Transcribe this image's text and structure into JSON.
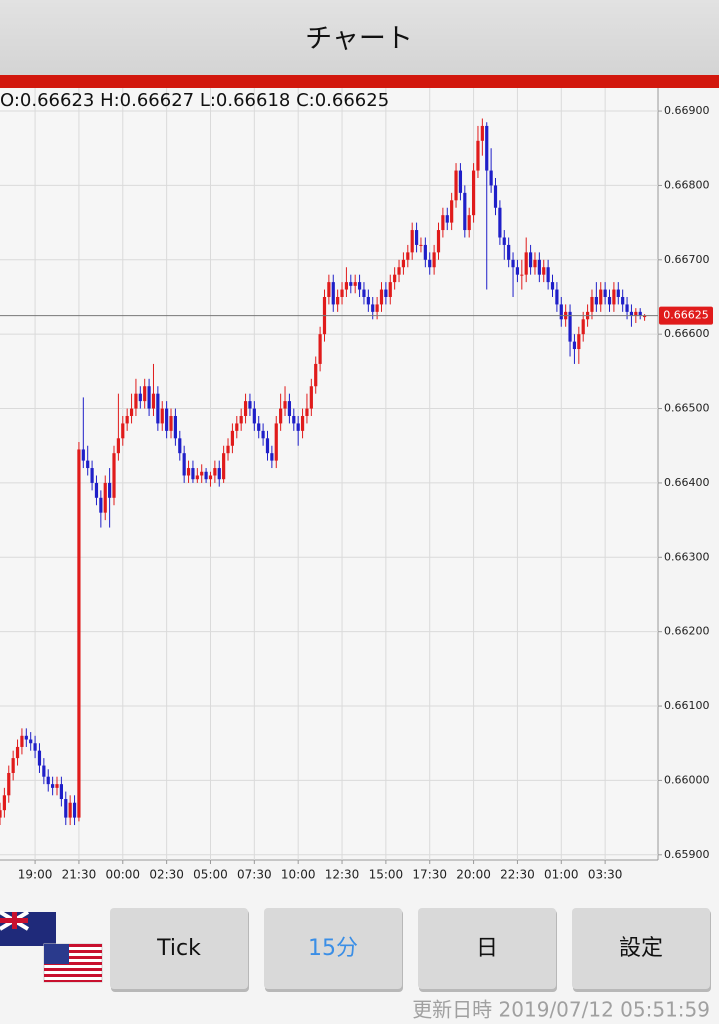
{
  "header": {
    "title": "チャート"
  },
  "chart_data": {
    "type": "candlestick",
    "info": "O:0.66623 H:0.66627 L:0.66618 C:0.66625",
    "up_color": "#e01b1b",
    "down_color": "#1f1fc8",
    "current": 0.66625,
    "ylim": [
      0.65893,
      0.66931
    ],
    "yticks": [
      {
        "value": 0.659,
        "label": "0.65900"
      },
      {
        "value": 0.66,
        "label": "0.66000"
      },
      {
        "value": 0.661,
        "label": "0.66100"
      },
      {
        "value": 0.662,
        "label": "0.66200"
      },
      {
        "value": 0.663,
        "label": "0.66300"
      },
      {
        "value": 0.664,
        "label": "0.66400"
      },
      {
        "value": 0.665,
        "label": "0.66500"
      },
      {
        "value": 0.666,
        "label": "0.66600"
      },
      {
        "value": 0.667,
        "label": "0.66700"
      },
      {
        "value": 0.668,
        "label": "0.66800"
      },
      {
        "value": 0.669,
        "label": "0.66900"
      }
    ],
    "grid": true,
    "categories": [
      null,
      null,
      null,
      null,
      null,
      null,
      null,
      null,
      "19:00",
      null,
      null,
      null,
      null,
      null,
      null,
      null,
      null,
      null,
      "21:30",
      null,
      null,
      null,
      null,
      null,
      null,
      null,
      null,
      null,
      "00:00",
      null,
      null,
      null,
      null,
      null,
      null,
      null,
      null,
      null,
      "02:30",
      null,
      null,
      null,
      null,
      null,
      null,
      null,
      null,
      null,
      "05:00",
      null,
      null,
      null,
      null,
      null,
      null,
      null,
      null,
      null,
      "07:30",
      null,
      null,
      null,
      null,
      null,
      null,
      null,
      null,
      null,
      "10:00",
      null,
      null,
      null,
      null,
      null,
      null,
      null,
      null,
      null,
      "12:30",
      null,
      null,
      null,
      null,
      null,
      null,
      null,
      null,
      null,
      "15:00",
      null,
      null,
      null,
      null,
      null,
      null,
      null,
      null,
      null,
      "17:30",
      null,
      null,
      null,
      null,
      null,
      null,
      null,
      null,
      null,
      "20:00",
      null,
      null,
      null,
      null,
      null,
      null,
      null,
      null,
      null,
      "22:30",
      null,
      null,
      null,
      null,
      null,
      null,
      null,
      null,
      null,
      "01:00",
      null,
      null,
      null,
      null,
      null,
      null,
      null,
      null,
      null,
      "03:30",
      null,
      null,
      null,
      null,
      null,
      null,
      null,
      null,
      null
    ],
    "ohlc": [
      [
        0.6595,
        0.6597,
        0.6594,
        0.6596
      ],
      [
        0.6596,
        0.6599,
        0.6595,
        0.6598
      ],
      [
        0.6598,
        0.6602,
        0.6597,
        0.6601
      ],
      [
        0.6601,
        0.6604,
        0.66,
        0.6603
      ],
      [
        0.6603,
        0.66055,
        0.6602,
        0.66045
      ],
      [
        0.66045,
        0.6607,
        0.66035,
        0.6606
      ],
      [
        0.6606,
        0.6607,
        0.66045,
        0.66055
      ],
      [
        0.66055,
        0.66065,
        0.6604,
        0.6605
      ],
      [
        0.6605,
        0.6606,
        0.6603,
        0.6604
      ],
      [
        0.6604,
        0.6605,
        0.6601,
        0.6602
      ],
      [
        0.6602,
        0.6603,
        0.65995,
        0.66005
      ],
      [
        0.66005,
        0.66015,
        0.65985,
        0.65995
      ],
      [
        0.65995,
        0.66005,
        0.6598,
        0.6599
      ],
      [
        0.6599,
        0.66005,
        0.6598,
        0.65995
      ],
      [
        0.65995,
        0.66005,
        0.65965,
        0.65975
      ],
      [
        0.65975,
        0.65985,
        0.6594,
        0.6595
      ],
      [
        0.6595,
        0.6598,
        0.6594,
        0.6597
      ],
      [
        0.6597,
        0.6598,
        0.6594,
        0.6595
      ],
      [
        0.6595,
        0.66455,
        0.65945,
        0.66445
      ],
      [
        0.66445,
        0.66515,
        0.6642,
        0.6643
      ],
      [
        0.6643,
        0.6645,
        0.6641,
        0.6642
      ],
      [
        0.6642,
        0.6643,
        0.6639,
        0.664
      ],
      [
        0.664,
        0.6641,
        0.6637,
        0.6638
      ],
      [
        0.6638,
        0.6639,
        0.6634,
        0.6636
      ],
      [
        0.6636,
        0.6641,
        0.6635,
        0.664
      ],
      [
        0.664,
        0.6642,
        0.6634,
        0.6638
      ],
      [
        0.6638,
        0.6645,
        0.6637,
        0.6644
      ],
      [
        0.6644,
        0.6652,
        0.6643,
        0.6646
      ],
      [
        0.6646,
        0.6649,
        0.6645,
        0.6648
      ],
      [
        0.6648,
        0.665,
        0.6647,
        0.6649
      ],
      [
        0.6649,
        0.6652,
        0.6648,
        0.665
      ],
      [
        0.665,
        0.6654,
        0.6649,
        0.6652
      ],
      [
        0.6652,
        0.6653,
        0.665,
        0.6651
      ],
      [
        0.6651,
        0.6654,
        0.665,
        0.6653
      ],
      [
        0.6653,
        0.6654,
        0.6649,
        0.665
      ],
      [
        0.665,
        0.6656,
        0.6649,
        0.6652
      ],
      [
        0.6652,
        0.6653,
        0.6647,
        0.6648
      ],
      [
        0.6648,
        0.6651,
        0.6647,
        0.665
      ],
      [
        0.665,
        0.6651,
        0.6646,
        0.6647
      ],
      [
        0.6647,
        0.665,
        0.6646,
        0.6649
      ],
      [
        0.6649,
        0.665,
        0.6645,
        0.6646
      ],
      [
        0.6646,
        0.6647,
        0.6643,
        0.6644
      ],
      [
        0.6644,
        0.6645,
        0.664,
        0.6641
      ],
      [
        0.6641,
        0.6643,
        0.664,
        0.6642
      ],
      [
        0.6642,
        0.6643,
        0.664,
        0.66405
      ],
      [
        0.66405,
        0.6642,
        0.664,
        0.6641
      ],
      [
        0.6641,
        0.66425,
        0.664,
        0.66415
      ],
      [
        0.66415,
        0.6642,
        0.664,
        0.66405
      ],
      [
        0.66405,
        0.66415,
        0.66395,
        0.6641
      ],
      [
        0.6641,
        0.6643,
        0.664,
        0.6642
      ],
      [
        0.6642,
        0.6643,
        0.66395,
        0.66405
      ],
      [
        0.66405,
        0.6645,
        0.664,
        0.6644
      ],
      [
        0.6644,
        0.6646,
        0.6643,
        0.6645
      ],
      [
        0.6645,
        0.6648,
        0.6644,
        0.6647
      ],
      [
        0.6647,
        0.6649,
        0.6646,
        0.6648
      ],
      [
        0.6648,
        0.665,
        0.6647,
        0.6649
      ],
      [
        0.6649,
        0.6652,
        0.6648,
        0.6651
      ],
      [
        0.6651,
        0.6652,
        0.6649,
        0.665
      ],
      [
        0.665,
        0.6651,
        0.6647,
        0.6648
      ],
      [
        0.6648,
        0.6649,
        0.6646,
        0.6647
      ],
      [
        0.6647,
        0.6648,
        0.6645,
        0.6646
      ],
      [
        0.6646,
        0.6647,
        0.6643,
        0.6644
      ],
      [
        0.6644,
        0.6645,
        0.6642,
        0.6643
      ],
      [
        0.6643,
        0.6649,
        0.6642,
        0.6648
      ],
      [
        0.6648,
        0.6652,
        0.6647,
        0.665
      ],
      [
        0.665,
        0.6653,
        0.6649,
        0.6651
      ],
      [
        0.6651,
        0.6652,
        0.6648,
        0.6649
      ],
      [
        0.6649,
        0.665,
        0.6647,
        0.6648
      ],
      [
        0.6648,
        0.6649,
        0.6645,
        0.6647
      ],
      [
        0.6647,
        0.665,
        0.6646,
        0.6649
      ],
      [
        0.6649,
        0.6652,
        0.6648,
        0.665
      ],
      [
        0.665,
        0.6654,
        0.6649,
        0.6653
      ],
      [
        0.6653,
        0.6657,
        0.6652,
        0.6656
      ],
      [
        0.6656,
        0.6661,
        0.6655,
        0.666
      ],
      [
        0.666,
        0.6666,
        0.6659,
        0.6665
      ],
      [
        0.6665,
        0.6668,
        0.6664,
        0.6667
      ],
      [
        0.6667,
        0.6668,
        0.6663,
        0.6664
      ],
      [
        0.6664,
        0.6666,
        0.6663,
        0.6665
      ],
      [
        0.6665,
        0.6667,
        0.6664,
        0.6666
      ],
      [
        0.6666,
        0.6669,
        0.6665,
        0.6667
      ],
      [
        0.6667,
        0.6668,
        0.66655,
        0.66665
      ],
      [
        0.66665,
        0.6668,
        0.66655,
        0.6667
      ],
      [
        0.6667,
        0.6668,
        0.6665,
        0.6666
      ],
      [
        0.6666,
        0.6667,
        0.6664,
        0.6665
      ],
      [
        0.6665,
        0.6666,
        0.6663,
        0.6664
      ],
      [
        0.6664,
        0.6665,
        0.6662,
        0.6663
      ],
      [
        0.6663,
        0.6665,
        0.6662,
        0.6664
      ],
      [
        0.6664,
        0.6667,
        0.6663,
        0.6666
      ],
      [
        0.6666,
        0.6667,
        0.6664,
        0.6665
      ],
      [
        0.6665,
        0.6668,
        0.6664,
        0.6667
      ],
      [
        0.6667,
        0.6669,
        0.6666,
        0.6668
      ],
      [
        0.6668,
        0.667,
        0.6667,
        0.6669
      ],
      [
        0.6669,
        0.6671,
        0.6668,
        0.667
      ],
      [
        0.667,
        0.6672,
        0.6669,
        0.6671
      ],
      [
        0.6671,
        0.6675,
        0.667,
        0.6674
      ],
      [
        0.6674,
        0.6675,
        0.6671,
        0.6672
      ],
      [
        0.6672,
        0.6673,
        0.6671,
        0.6672
      ],
      [
        0.6672,
        0.6673,
        0.6669,
        0.667
      ],
      [
        0.667,
        0.6671,
        0.6668,
        0.6669
      ],
      [
        0.6669,
        0.6672,
        0.6668,
        0.6671
      ],
      [
        0.6671,
        0.6675,
        0.667,
        0.6674
      ],
      [
        0.6674,
        0.6677,
        0.6673,
        0.6676
      ],
      [
        0.6676,
        0.6677,
        0.6674,
        0.6675
      ],
      [
        0.6675,
        0.6679,
        0.6674,
        0.6678
      ],
      [
        0.6678,
        0.6683,
        0.6677,
        0.6682
      ],
      [
        0.6682,
        0.6683,
        0.6678,
        0.6679
      ],
      [
        0.6679,
        0.668,
        0.6673,
        0.6674
      ],
      [
        0.6674,
        0.6677,
        0.6673,
        0.6676
      ],
      [
        0.6676,
        0.6683,
        0.6675,
        0.6682
      ],
      [
        0.6682,
        0.6688,
        0.6681,
        0.6686
      ],
      [
        0.6686,
        0.6689,
        0.6684,
        0.6688
      ],
      [
        0.6688,
        0.66885,
        0.6666,
        0.6682
      ],
      [
        0.6682,
        0.6685,
        0.6679,
        0.668
      ],
      [
        0.668,
        0.6681,
        0.6676,
        0.6677
      ],
      [
        0.6677,
        0.6678,
        0.6672,
        0.6673
      ],
      [
        0.6673,
        0.6674,
        0.667,
        0.6672
      ],
      [
        0.6672,
        0.6673,
        0.6669,
        0.667
      ],
      [
        0.667,
        0.6671,
        0.6665,
        0.6669
      ],
      [
        0.6669,
        0.667,
        0.6667,
        0.6668
      ],
      [
        0.6668,
        0.667,
        0.6666,
        0.6668
      ],
      [
        0.6668,
        0.6673,
        0.6667,
        0.6671
      ],
      [
        0.6671,
        0.6672,
        0.6668,
        0.6669
      ],
      [
        0.6669,
        0.6671,
        0.6668,
        0.667
      ],
      [
        0.667,
        0.6671,
        0.6667,
        0.6668
      ],
      [
        0.6668,
        0.667,
        0.6667,
        0.6669
      ],
      [
        0.6669,
        0.667,
        0.6666,
        0.6667
      ],
      [
        0.6667,
        0.6668,
        0.6665,
        0.6666
      ],
      [
        0.6666,
        0.6667,
        0.6663,
        0.6664
      ],
      [
        0.6664,
        0.6665,
        0.6661,
        0.6662
      ],
      [
        0.6662,
        0.6664,
        0.6661,
        0.6663
      ],
      [
        0.6663,
        0.6664,
        0.6657,
        0.6659
      ],
      [
        0.6659,
        0.666,
        0.6656,
        0.6658
      ],
      [
        0.6658,
        0.6661,
        0.6656,
        0.666
      ],
      [
        0.666,
        0.6663,
        0.6659,
        0.6662
      ],
      [
        0.6662,
        0.6664,
        0.6661,
        0.6663
      ],
      [
        0.6663,
        0.6666,
        0.6662,
        0.6665
      ],
      [
        0.6665,
        0.6667,
        0.6663,
        0.6664
      ],
      [
        0.6664,
        0.6667,
        0.6663,
        0.6666
      ],
      [
        0.6666,
        0.6667,
        0.6664,
        0.6665
      ],
      [
        0.6665,
        0.6666,
        0.6663,
        0.6664
      ],
      [
        0.6664,
        0.6667,
        0.6663,
        0.6666
      ],
      [
        0.6666,
        0.6667,
        0.6664,
        0.6665
      ],
      [
        0.6665,
        0.6666,
        0.6663,
        0.6664
      ],
      [
        0.6664,
        0.6665,
        0.6662,
        0.6663
      ],
      [
        0.6663,
        0.6664,
        0.6661,
        0.66625
      ],
      [
        0.66625,
        0.66635,
        0.66615,
        0.6663
      ],
      [
        0.6663,
        0.66635,
        0.6662,
        0.66625
      ],
      [
        0.66623,
        0.66627,
        0.66618,
        0.66625
      ]
    ]
  },
  "buttons": [
    "Tick",
    "15分",
    "日",
    "設定"
  ],
  "footer": {
    "updated": "更新日時 2019/07/12 05:51:59"
  }
}
